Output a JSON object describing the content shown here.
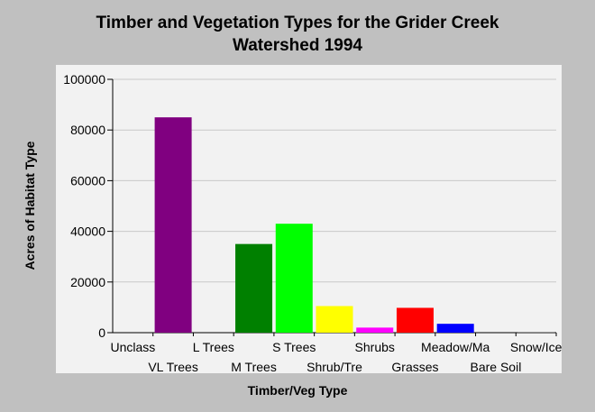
{
  "chart_data": {
    "type": "bar",
    "title_line1": "Timber and Vegetation Types for the Grider Creek",
    "title_line2": "Watershed 1994",
    "xlabel": "Timber/Veg Type",
    "ylabel": "Acres of Habitat Type",
    "ylim": [
      0,
      100000
    ],
    "yticks": [
      0,
      20000,
      40000,
      60000,
      80000,
      100000
    ],
    "grid": true,
    "categories": [
      "Unclass",
      "VL Trees",
      "L Trees",
      "M Trees",
      "S Trees",
      "Shrub/Tre",
      "Shrubs",
      "Grasses",
      "Meadow/Ma",
      "Bare Soil",
      "Snow/Ice"
    ],
    "values": [
      0,
      85000,
      0,
      35000,
      43000,
      10500,
      2000,
      9800,
      3500,
      0,
      300
    ],
    "colors": [
      "#800080",
      "#800080",
      "#006400",
      "#008000",
      "#00ff00",
      "#ffff00",
      "#ff00ff",
      "#ff0000",
      "#0000ff",
      "#808080",
      "#808080"
    ]
  }
}
